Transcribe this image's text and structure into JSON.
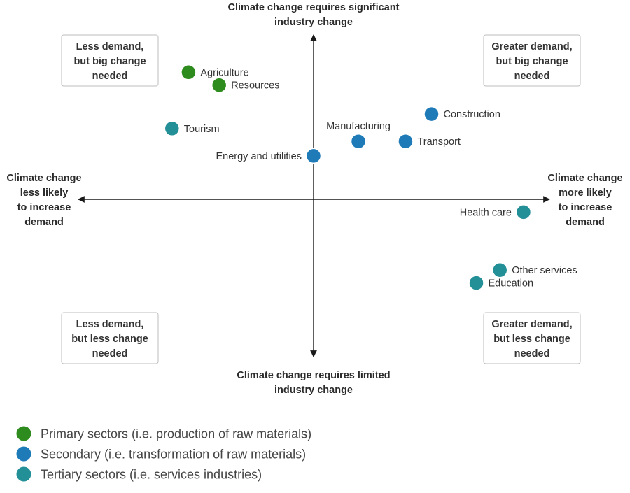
{
  "chart_data": {
    "type": "scatter",
    "axes": {
      "top": [
        "Climate change requires significant",
        "industry change"
      ],
      "bottom": [
        "Climate change requires limited",
        "industry change"
      ],
      "left": [
        "Climate change",
        "less likely",
        "to increase",
        "demand"
      ],
      "right": [
        "Climate change",
        "more likely",
        "to increase",
        "demand"
      ]
    },
    "quadrants": {
      "top_left": [
        "Less demand,",
        "but big change",
        "needed"
      ],
      "top_right": [
        "Greater demand,",
        "but big change",
        "needed"
      ],
      "bottom_left": [
        "Less demand,",
        "but less change",
        "needed"
      ],
      "bottom_right": [
        "Greater demand,",
        "but less change",
        "needed"
      ]
    },
    "xlim": [
      -1,
      1
    ],
    "ylim": [
      -1,
      1
    ],
    "grid": false,
    "series": [
      {
        "name": "Primary sectors (i.e. production of raw materials)",
        "color": "#2e8b1e"
      },
      {
        "name": "Secondary (i.e. transformation of raw materials)",
        "color": "#1f7bb8"
      },
      {
        "name": "Tertiary sectors (i.e. services industries)",
        "color": "#238f96"
      }
    ],
    "points": [
      {
        "label": "Agriculture",
        "series": 0,
        "x": -0.53,
        "y": 0.79,
        "label_side": "right"
      },
      {
        "label": "Resources",
        "series": 0,
        "x": -0.4,
        "y": 0.71,
        "label_side": "right"
      },
      {
        "label": "Tourism",
        "series": 2,
        "x": -0.6,
        "y": 0.44,
        "label_side": "right"
      },
      {
        "label": "Construction",
        "series": 1,
        "x": 0.5,
        "y": 0.53,
        "label_side": "right"
      },
      {
        "label": "Manufacturing",
        "series": 1,
        "x": 0.19,
        "y": 0.36,
        "label_side": "above"
      },
      {
        "label": "Transport",
        "series": 1,
        "x": 0.39,
        "y": 0.36,
        "label_side": "right"
      },
      {
        "label": "Energy and utilities",
        "series": 1,
        "x": 0.0,
        "y": 0.27,
        "label_side": "left"
      },
      {
        "label": "Health care",
        "series": 2,
        "x": 0.89,
        "y": -0.08,
        "label_side": "left"
      },
      {
        "label": "Other services",
        "series": 2,
        "x": 0.79,
        "y": -0.44,
        "label_side": "right"
      },
      {
        "label": "Education",
        "series": 2,
        "x": 0.69,
        "y": -0.52,
        "label_side": "right"
      }
    ],
    "legend": {
      "position": "bottom-left"
    }
  }
}
